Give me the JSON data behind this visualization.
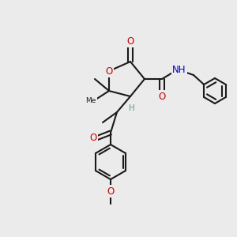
{
  "background_color": "#ebebeb",
  "figsize": [
    3.0,
    3.0
  ],
  "dpi": 100,
  "bond_color": "#1a1a1a",
  "bond_width": 1.5,
  "atom_bg": "#ebebeb",
  "colors": {
    "O": "#cc0000",
    "N": "#0000cc",
    "H": "#5a9a9a",
    "C": "#1a1a1a"
  },
  "font_size": 7.5
}
